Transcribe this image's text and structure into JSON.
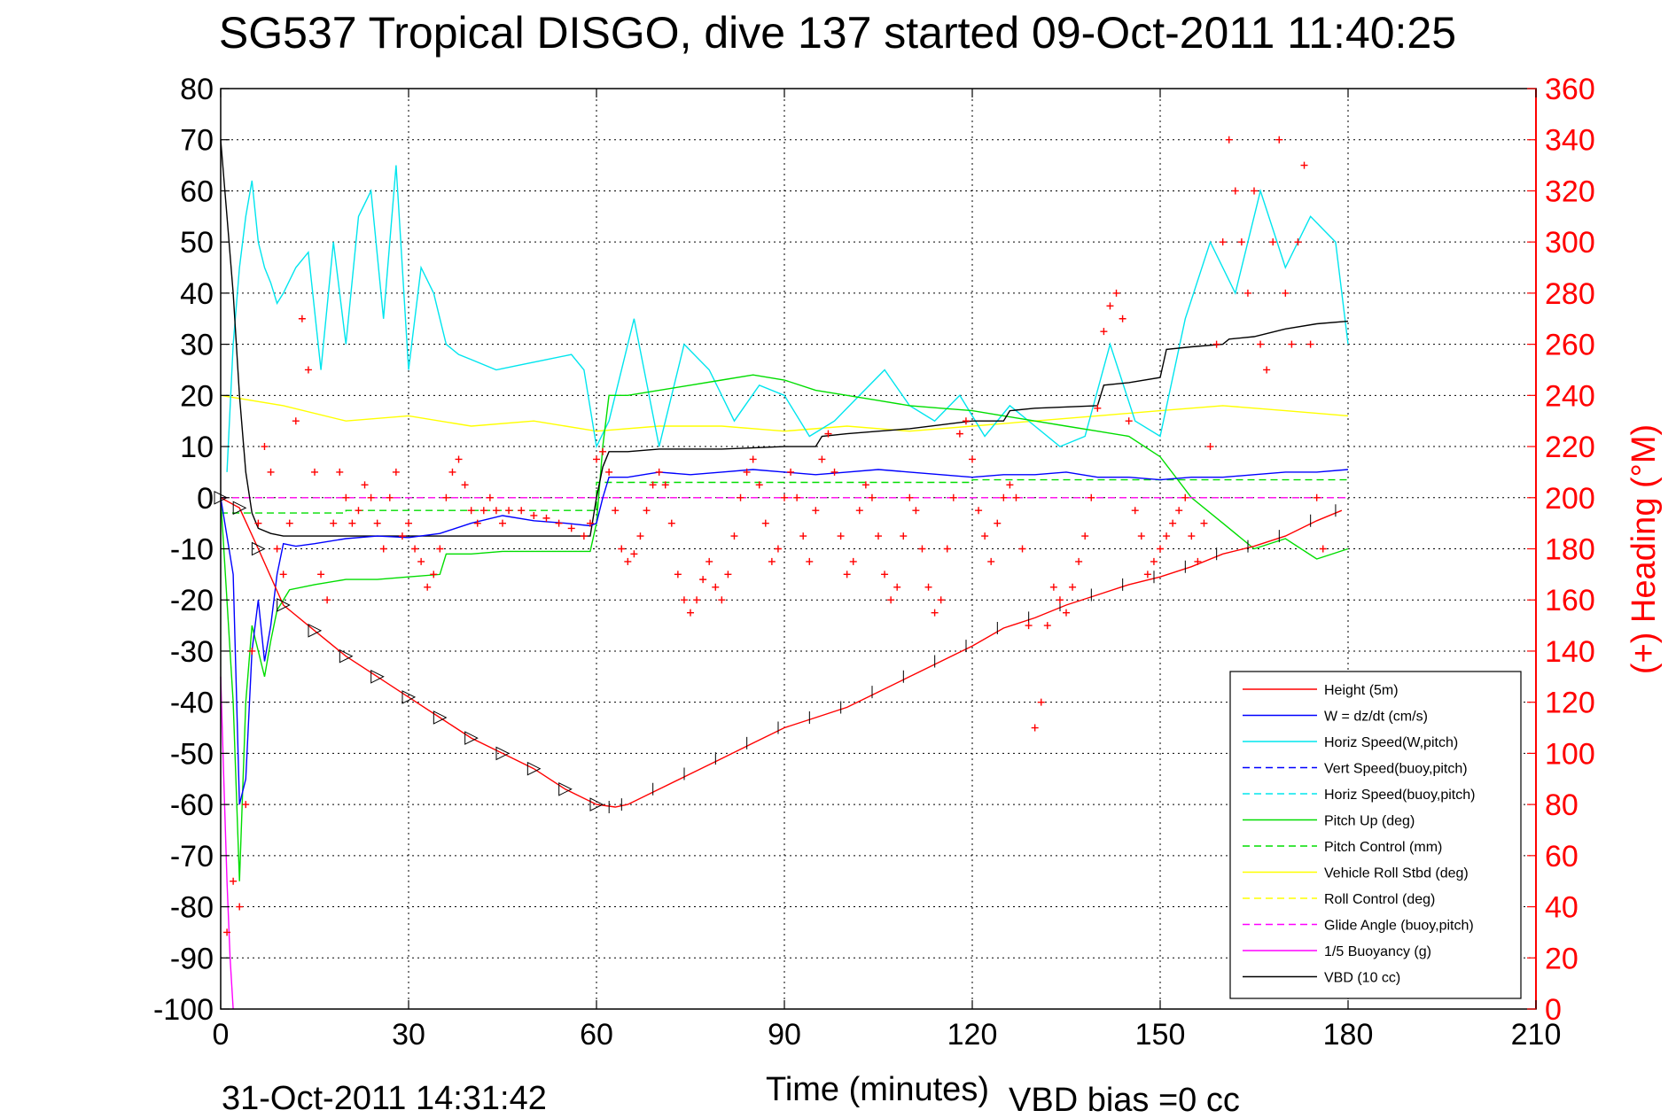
{
  "chart_data": {
    "type": "line",
    "title": "SG537 Tropical DISGO, dive 137 started 09-Oct-2011 11:40:25",
    "xlabel": "Time (minutes)",
    "ylabel_right": "(+) Heading (°M)",
    "xlim": [
      0,
      210
    ],
    "ylim": [
      -100,
      80
    ],
    "ylim_right": [
      0,
      360
    ],
    "xticks": [
      "0",
      "30",
      "60",
      "90",
      "120",
      "150",
      "180",
      "210"
    ],
    "yticks": [
      "80",
      "70",
      "60",
      "50",
      "40",
      "30",
      "20",
      "10",
      "0",
      "-10",
      "-20",
      "-30",
      "-40",
      "-50",
      "-60",
      "-70",
      "-80",
      "-90",
      "-100"
    ],
    "yticks_right": [
      "360",
      "340",
      "320",
      "300",
      "280",
      "260",
      "240",
      "220",
      "200",
      "180",
      "160",
      "140",
      "120",
      "100",
      "80",
      "60",
      "40",
      "20",
      "0"
    ],
    "grid": true,
    "legend_position": "bottom-right",
    "footer_date": "31-Oct-2011 14:31:42",
    "footer_bias": "VBD bias =0 cc",
    "series": [
      {
        "name": "Height (5m)",
        "color": "#ff0000",
        "style": "solid",
        "x": [
          0,
          3,
          6,
          10,
          15,
          20,
          25,
          30,
          35,
          40,
          45,
          50,
          55,
          60,
          63,
          65,
          70,
          75,
          80,
          85,
          90,
          95,
          100,
          105,
          110,
          115,
          120,
          125,
          130,
          135,
          140,
          145,
          150,
          155,
          160,
          165,
          170,
          175,
          179
        ],
        "y": [
          0,
          -2,
          -10,
          -21,
          -26,
          -31,
          -35,
          -39,
          -43,
          -47,
          -50,
          -53,
          -57,
          -60,
          -60.5,
          -60,
          -57,
          -54,
          -51,
          -48,
          -45,
          -43,
          -41,
          -38,
          -35,
          -32,
          -29,
          -25.5,
          -23.5,
          -21,
          -19,
          -17,
          -15.5,
          -13.5,
          -11,
          -9.5,
          -7.5,
          -4.5,
          -2.5
        ]
      },
      {
        "name": "W = dz/dt (cm/s)",
        "color": "#0000ff",
        "style": "solid",
        "x": [
          0,
          2,
          3,
          4,
          5,
          6,
          7,
          8,
          9,
          10,
          12,
          15,
          20,
          25,
          30,
          35,
          40,
          45,
          50,
          55,
          59,
          60,
          61,
          62,
          65,
          70,
          75,
          80,
          85,
          90,
          95,
          100,
          105,
          110,
          115,
          120,
          125,
          130,
          135,
          140,
          145,
          150,
          155,
          160,
          165,
          170,
          175,
          180
        ],
        "y": [
          0,
          -15,
          -60,
          -55,
          -30,
          -20,
          -32,
          -25,
          -15,
          -9,
          -9.5,
          -9,
          -8,
          -7.5,
          -7.8,
          -7,
          -5,
          -3.5,
          -4.5,
          -5,
          -5.5,
          -5,
          0,
          4,
          4,
          5,
          4.5,
          5,
          5.5,
          5,
          4.5,
          5,
          5.5,
          5,
          4.5,
          4,
          4.5,
          4.5,
          5,
          4,
          4,
          3.5,
          4,
          4,
          4.5,
          5,
          5,
          5.5
        ]
      },
      {
        "name": "Horiz Speed(W,pitch)",
        "color": "#00e5ee",
        "style": "solid",
        "x": [
          1,
          2,
          3,
          4,
          5,
          6,
          7,
          8,
          9,
          10,
          12,
          14,
          16,
          18,
          20,
          22,
          24,
          26,
          28,
          30,
          32,
          34,
          36,
          38,
          40,
          44,
          48,
          52,
          56,
          58,
          60,
          62,
          66,
          70,
          74,
          78,
          82,
          86,
          90,
          94,
          98,
          102,
          106,
          110,
          114,
          118,
          122,
          126,
          130,
          134,
          138,
          142,
          146,
          150,
          154,
          158,
          162,
          166,
          170,
          174,
          178,
          180
        ],
        "y": [
          5,
          30,
          45,
          55,
          62,
          50,
          45,
          42,
          38,
          40,
          45,
          48,
          25,
          50,
          30,
          55,
          60,
          35,
          65,
          25,
          45,
          40,
          30,
          28,
          27,
          25,
          26,
          27,
          28,
          25,
          10,
          15,
          35,
          10,
          30,
          25,
          15,
          22,
          20,
          12,
          15,
          20,
          25,
          18,
          15,
          20,
          12,
          18,
          14,
          10,
          12,
          30,
          15,
          12,
          35,
          50,
          40,
          60,
          45,
          55,
          50,
          30
        ]
      },
      {
        "name": "Vert Speed(buoy,pitch)",
        "color": "#0000ff",
        "style": "dashed",
        "x": [],
        "y": []
      },
      {
        "name": "Horiz Speed(buoy,pitch)",
        "color": "#00e5ee",
        "style": "dashed",
        "x": [],
        "y": []
      },
      {
        "name": "Pitch Up (deg)",
        "color": "#00dd00",
        "style": "solid",
        "x": [
          0,
          2,
          3,
          4,
          5,
          6,
          7,
          8,
          9,
          10,
          11,
          15,
          20,
          25,
          30,
          35,
          36,
          40,
          45,
          50,
          55,
          59,
          60,
          61,
          62,
          65,
          70,
          75,
          80,
          85,
          90,
          95,
          100,
          105,
          110,
          115,
          120,
          125,
          130,
          135,
          140,
          145,
          150,
          155,
          160,
          165,
          170,
          175,
          180
        ],
        "y": [
          0,
          -40,
          -75,
          -40,
          -25,
          -30,
          -35,
          -28,
          -22,
          -20,
          -18,
          -17,
          -16,
          -16,
          -15.5,
          -15,
          -11,
          -11,
          -10.5,
          -10.5,
          -10.5,
          -10.5,
          -5,
          10,
          20,
          20,
          21,
          22,
          23,
          24,
          23,
          21,
          20,
          19,
          18,
          17.5,
          17,
          16,
          15,
          14,
          13,
          12,
          8,
          0,
          -5,
          -10,
          -8,
          -12,
          -10
        ]
      },
      {
        "name": "Pitch Control (mm)",
        "color": "#00dd00",
        "style": "dashed",
        "x": [
          0,
          20,
          20,
          60,
          60,
          120,
          120,
          180
        ],
        "y": [
          -3,
          -3,
          -2.5,
          -2.5,
          3,
          3,
          3.5,
          3.5
        ]
      },
      {
        "name": "Vehicle Roll Stbd (deg)",
        "color": "#ffff00",
        "style": "solid",
        "x": [
          0,
          10,
          20,
          30,
          40,
          50,
          60,
          70,
          80,
          90,
          100,
          110,
          120,
          130,
          140,
          150,
          160,
          170,
          180
        ],
        "y": [
          20,
          18,
          15,
          16,
          14,
          15,
          13,
          14,
          14,
          13,
          14,
          13,
          14,
          15,
          16,
          17,
          18,
          17,
          16
        ]
      },
      {
        "name": "Roll Control (deg)",
        "color": "#ffff00",
        "style": "dashed",
        "x": [
          0,
          180
        ],
        "y": [
          0,
          0
        ]
      },
      {
        "name": "Glide Angle (buoy,pitch)",
        "color": "#ff00ff",
        "style": "dashed",
        "x": [
          0,
          180
        ],
        "y": [
          0,
          0
        ]
      },
      {
        "name": "1/5 Buoyancy (g)",
        "color": "#ff00ff",
        "style": "solid",
        "x": [
          0,
          0.5,
          1,
          1.5,
          2
        ],
        "y": [
          -35,
          -55,
          -75,
          -90,
          -100
        ]
      },
      {
        "name": "VBD (10 cc)",
        "color": "#000000",
        "style": "solid",
        "x": [
          0,
          1,
          2,
          3,
          4,
          5,
          6,
          8,
          10,
          20,
          30,
          40,
          50,
          59,
          60,
          61,
          62,
          65,
          70,
          80,
          90,
          95,
          96,
          100,
          110,
          120,
          125,
          126,
          130,
          140,
          141,
          145,
          150,
          151,
          155,
          160,
          161,
          165,
          170,
          175,
          180
        ],
        "y": [
          70,
          55,
          40,
          20,
          5,
          -3,
          -6,
          -7,
          -7.5,
          -7.5,
          -7.5,
          -7.5,
          -7.5,
          -7.5,
          0,
          6,
          9,
          9,
          9.5,
          9.5,
          10,
          10,
          12,
          12.5,
          13.5,
          15,
          15,
          17,
          17.5,
          18,
          22,
          22.5,
          23.5,
          29,
          29.5,
          30,
          31,
          31.5,
          33,
          34,
          34.5
        ]
      }
    ],
    "heading": {
      "name": "(+) Heading (°M)",
      "color": "#ff0000",
      "marker": "+",
      "x": [
        1,
        2,
        3,
        4,
        5,
        6,
        7,
        8,
        9,
        10,
        11,
        12,
        13,
        14,
        15,
        16,
        17,
        18,
        19,
        20,
        21,
        22,
        23,
        24,
        25,
        26,
        27,
        28,
        29,
        30,
        31,
        32,
        33,
        34,
        35,
        36,
        37,
        38,
        39,
        40,
        41,
        42,
        43,
        44,
        45,
        46,
        48,
        50,
        52,
        54,
        56,
        58,
        59,
        60,
        61,
        62,
        63,
        64,
        65,
        66,
        67,
        68,
        69,
        70,
        71,
        72,
        73,
        74,
        75,
        76,
        77,
        78,
        79,
        80,
        81,
        82,
        83,
        84,
        85,
        86,
        87,
        88,
        89,
        90,
        91,
        92,
        93,
        94,
        95,
        96,
        97,
        98,
        99,
        100,
        101,
        102,
        103,
        104,
        105,
        106,
        107,
        108,
        109,
        110,
        111,
        112,
        113,
        114,
        115,
        116,
        117,
        118,
        119,
        120,
        121,
        122,
        123,
        124,
        125,
        126,
        127,
        128,
        129,
        130,
        131,
        132,
        133,
        134,
        135,
        136,
        137,
        138,
        139,
        140,
        141,
        142,
        143,
        144,
        145,
        146,
        147,
        148,
        149,
        150,
        151,
        152,
        153,
        154,
        155,
        156,
        157,
        158,
        159,
        160,
        161,
        162,
        163,
        164,
        165,
        166,
        167,
        168,
        169,
        170,
        171,
        172,
        173,
        174,
        175,
        176
      ],
      "y": [
        30,
        50,
        40,
        80,
        140,
        190,
        220,
        210,
        180,
        170,
        190,
        230,
        270,
        250,
        210,
        170,
        160,
        190,
        210,
        200,
        190,
        195,
        205,
        200,
        190,
        180,
        200,
        210,
        185,
        190,
        180,
        175,
        165,
        170,
        180,
        200,
        210,
        215,
        205,
        195,
        190,
        195,
        200,
        195,
        190,
        195,
        195,
        193,
        192,
        190,
        188,
        185,
        190,
        215,
        218,
        210,
        195,
        180,
        175,
        178,
        185,
        195,
        205,
        210,
        205,
        190,
        170,
        160,
        155,
        160,
        168,
        175,
        165,
        160,
        170,
        185,
        200,
        210,
        215,
        205,
        190,
        175,
        180,
        200,
        210,
        200,
        185,
        175,
        195,
        215,
        225,
        210,
        185,
        170,
        175,
        195,
        205,
        200,
        185,
        170,
        160,
        165,
        185,
        200,
        195,
        180,
        165,
        155,
        160,
        180,
        200,
        225,
        230,
        215,
        195,
        185,
        175,
        190,
        200,
        205,
        200,
        180,
        150,
        110,
        120,
        150,
        165,
        160,
        155,
        165,
        175,
        185,
        200,
        235,
        265,
        275,
        280,
        270,
        230,
        195,
        185,
        170,
        175,
        180,
        185,
        190,
        195,
        200,
        185,
        175,
        190,
        220,
        260,
        300,
        340,
        320,
        300,
        280,
        320,
        260,
        250,
        300,
        340,
        280,
        260,
        300,
        330,
        260,
        200,
        180
      ]
    }
  }
}
